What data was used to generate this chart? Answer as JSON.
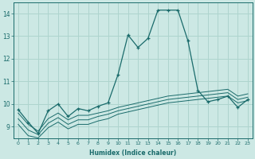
{
  "xlabel": "Humidex (Indice chaleur)",
  "ylabel": "",
  "xlim": [
    -0.5,
    23.5
  ],
  "ylim": [
    8.5,
    14.5
  ],
  "xticks": [
    0,
    1,
    2,
    3,
    4,
    5,
    6,
    7,
    8,
    9,
    10,
    11,
    12,
    13,
    14,
    15,
    16,
    17,
    18,
    19,
    20,
    21,
    22,
    23
  ],
  "yticks": [
    9,
    10,
    11,
    12,
    13,
    14
  ],
  "bg_color": "#cce8e4",
  "line_color": "#1a6b6b",
  "grid_color": "#aed4ce",
  "series1": {
    "x": [
      0,
      1,
      2,
      3,
      4,
      5,
      6,
      7,
      8,
      9,
      10,
      11,
      12,
      13,
      14,
      15,
      16,
      17,
      18,
      19,
      20,
      21,
      22,
      23
    ],
    "y": [
      9.75,
      9.2,
      8.7,
      9.7,
      10.0,
      9.45,
      9.8,
      9.7,
      9.9,
      10.05,
      11.3,
      13.05,
      12.5,
      12.9,
      14.15,
      14.15,
      14.15,
      12.8,
      10.6,
      10.1,
      10.2,
      10.35,
      9.85,
      10.2
    ]
  },
  "series2": {
    "x": [
      0,
      1,
      2,
      3,
      4,
      5,
      6,
      7,
      8,
      9,
      10,
      11,
      12,
      13,
      14,
      15,
      16,
      17,
      18,
      19,
      20,
      21,
      22,
      23
    ],
    "y": [
      9.6,
      9.1,
      8.8,
      9.35,
      9.6,
      9.3,
      9.5,
      9.5,
      9.6,
      9.7,
      9.85,
      9.95,
      10.05,
      10.15,
      10.25,
      10.35,
      10.4,
      10.45,
      10.5,
      10.55,
      10.6,
      10.65,
      10.35,
      10.45
    ]
  },
  "series3": {
    "x": [
      0,
      1,
      2,
      3,
      4,
      5,
      6,
      7,
      8,
      9,
      10,
      11,
      12,
      13,
      14,
      15,
      16,
      17,
      18,
      19,
      20,
      21,
      22,
      23
    ],
    "y": [
      9.35,
      8.85,
      8.65,
      9.15,
      9.4,
      9.1,
      9.3,
      9.3,
      9.45,
      9.55,
      9.7,
      9.8,
      9.9,
      10.0,
      10.1,
      10.2,
      10.25,
      10.3,
      10.35,
      10.4,
      10.45,
      10.5,
      10.2,
      10.3
    ]
  },
  "series4": {
    "x": [
      0,
      1,
      2,
      3,
      4,
      5,
      6,
      7,
      8,
      9,
      10,
      11,
      12,
      13,
      14,
      15,
      16,
      17,
      18,
      19,
      20,
      21,
      22,
      23
    ],
    "y": [
      9.1,
      8.6,
      8.5,
      8.95,
      9.2,
      8.9,
      9.1,
      9.1,
      9.25,
      9.35,
      9.55,
      9.65,
      9.75,
      9.85,
      9.95,
      10.05,
      10.1,
      10.15,
      10.2,
      10.25,
      10.3,
      10.35,
      10.05,
      10.15
    ]
  }
}
